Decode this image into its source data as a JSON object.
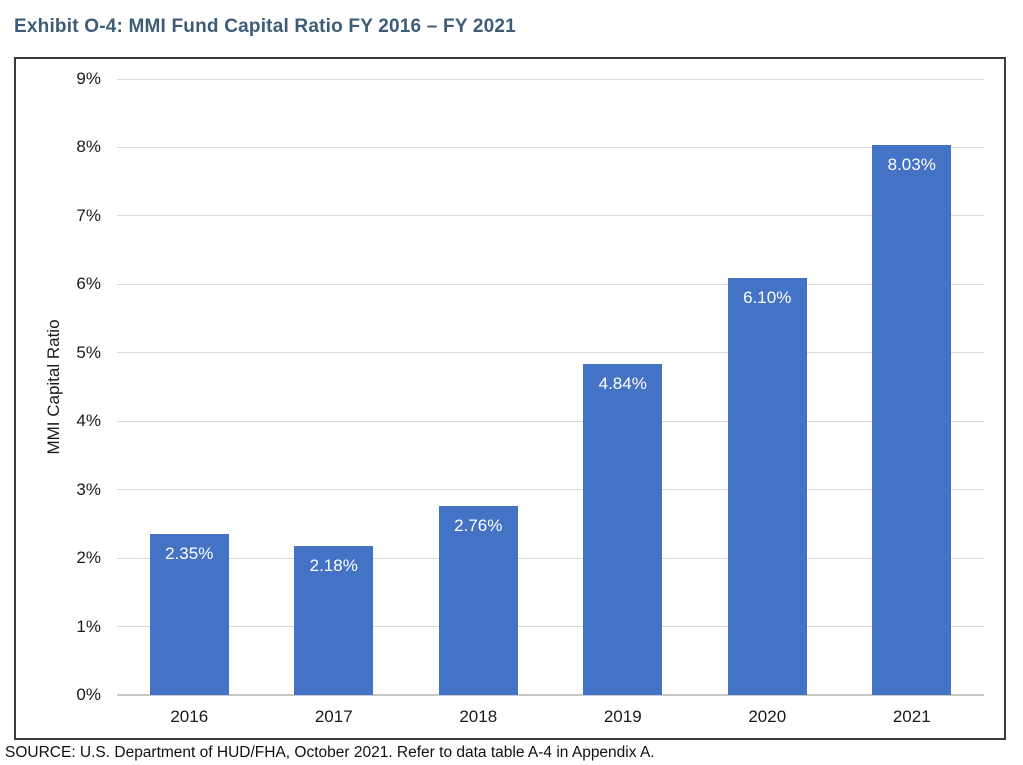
{
  "page": {
    "title": "Exhibit O-4: MMI Fund Capital Ratio FY 2016 – FY 2021",
    "source": "SOURCE: U.S. Department of HUD/FHA, October 2021. Refer to data table A-4 in Appendix A."
  },
  "colors": {
    "bar": "#4472c4",
    "title_text": "#3e5c78",
    "gridline": "#d9d9d9",
    "baseline": "#c9c9c9",
    "chart_border": "#3a3a3a",
    "bar_label_text": "#ffffff",
    "axis_text": "#1a1a1a"
  },
  "chart_data": {
    "type": "bar",
    "title": "Exhibit O-4: MMI Fund Capital Ratio FY 2016 – FY 2021",
    "categories": [
      "2016",
      "2017",
      "2018",
      "2019",
      "2020",
      "2021"
    ],
    "values": [
      2.35,
      2.18,
      2.76,
      4.84,
      6.1,
      8.03
    ],
    "data_labels": [
      "2.35%",
      "2.18%",
      "2.76%",
      "4.84%",
      "6.10%",
      "8.03%"
    ],
    "xlabel": "",
    "ylabel": "MMI Capital Ratio",
    "ylim": [
      0,
      9
    ],
    "ytick_step": 1,
    "ytick_labels": [
      "0%",
      "1%",
      "2%",
      "3%",
      "4%",
      "5%",
      "6%",
      "7%",
      "8%",
      "9%"
    ],
    "grid": true,
    "legend": false,
    "bar_width_ratio": 0.55
  }
}
